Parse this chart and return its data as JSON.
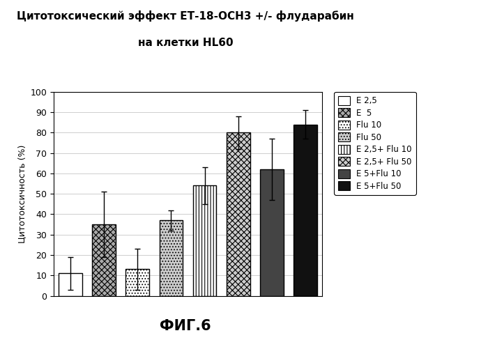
{
  "title_line1": "Цитотоксический эффект ЕТ-18-ОСН3 +/- флударабин",
  "title_line2": "на клетки HL60",
  "xlabel_bottom": "ФИГ.6",
  "ylabel": "Цитотоксичность (%)",
  "ylim": [
    0,
    100
  ],
  "yticks": [
    0,
    10,
    20,
    30,
    40,
    50,
    60,
    70,
    80,
    90,
    100
  ],
  "bars": [
    {
      "label": "E 2,5",
      "value": 11,
      "error": 8,
      "facecolor": "white",
      "edgecolor": "black",
      "hatch": null,
      "linewidth": 1.0
    },
    {
      "label": "E  5",
      "value": 35,
      "error": 16,
      "facecolor": "#aaaaaa",
      "edgecolor": "black",
      "hatch": "xxxx",
      "linewidth": 1.0
    },
    {
      "label": "Flu 10",
      "value": 13,
      "error": 10,
      "facecolor": "white",
      "edgecolor": "black",
      "hatch": "....",
      "linewidth": 1.0
    },
    {
      "label": "Flu 50",
      "value": 37,
      "error": 5,
      "facecolor": "#cccccc",
      "edgecolor": "black",
      "hatch": "....",
      "linewidth": 1.0
    },
    {
      "label": "E 2,5+ Flu 10",
      "value": 54,
      "error": 9,
      "facecolor": "white",
      "edgecolor": "black",
      "hatch": "||||",
      "linewidth": 1.0
    },
    {
      "label": "E 2,5+ Flu 50",
      "value": 80,
      "error": 8,
      "facecolor": "#cccccc",
      "edgecolor": "black",
      "hatch": "xxxx",
      "linewidth": 1.0
    },
    {
      "label": "E 5+Flu 10",
      "value": 62,
      "error": 15,
      "facecolor": "#444444",
      "edgecolor": "black",
      "hatch": null,
      "linewidth": 1.0
    },
    {
      "label": "E 5+Flu 50",
      "value": 84,
      "error": 7,
      "facecolor": "#111111",
      "edgecolor": "black",
      "hatch": null,
      "linewidth": 1.0
    }
  ],
  "legend_styles": [
    {
      "facecolor": "white",
      "edgecolor": "black",
      "hatch": null,
      "label": "E 2,5"
    },
    {
      "facecolor": "#aaaaaa",
      "edgecolor": "black",
      "hatch": "xxxx",
      "label": "E  5"
    },
    {
      "facecolor": "white",
      "edgecolor": "black",
      "hatch": "....",
      "label": "Flu 10"
    },
    {
      "facecolor": "#cccccc",
      "edgecolor": "black",
      "hatch": "....",
      "label": "Flu 50"
    },
    {
      "facecolor": "white",
      "edgecolor": "black",
      "hatch": "||||",
      "label": "E 2,5+ Flu 10"
    },
    {
      "facecolor": "#cccccc",
      "edgecolor": "black",
      "hatch": "xxxx",
      "label": "E 2,5+ Flu 50"
    },
    {
      "facecolor": "#444444",
      "edgecolor": "black",
      "hatch": null,
      "label": "E 5+Flu 10"
    },
    {
      "facecolor": "#111111",
      "edgecolor": "black",
      "hatch": null,
      "label": "E 5+Flu 50"
    }
  ],
  "bar_width": 0.7,
  "legend_fontsize": 8.5,
  "title_fontsize": 11,
  "ylabel_fontsize": 9,
  "tick_fontsize": 9,
  "figsize": [
    7.0,
    4.88
  ],
  "dpi": 100
}
